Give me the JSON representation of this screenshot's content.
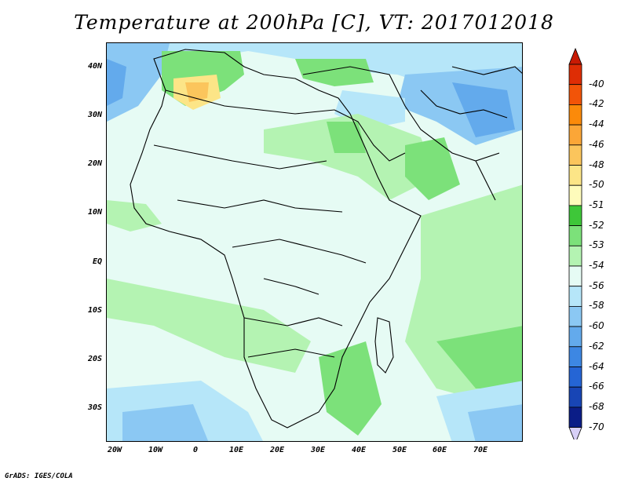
{
  "title": "Temperature at 200hPa [C], VT: 2017012018",
  "credit": "GrADS: IGES/COLA",
  "map": {
    "lat_labels": [
      "40N",
      "30N",
      "20N",
      "10N",
      "EQ",
      "10S",
      "20S",
      "30S"
    ],
    "lon_labels": [
      "20W",
      "10W",
      "0",
      "10E",
      "20E",
      "30E",
      "40E",
      "50E",
      "60E",
      "70E"
    ]
  },
  "colorbar": {
    "levels": [
      {
        "label": "-40",
        "color": "#de2d05"
      },
      {
        "label": "-42",
        "color": "#f25408"
      },
      {
        "label": "-44",
        "color": "#fb8a0a"
      },
      {
        "label": "-46",
        "color": "#fba637"
      },
      {
        "label": "-48",
        "color": "#fbc55c"
      },
      {
        "label": "-50",
        "color": "#fce587"
      },
      {
        "label": "-51",
        "color": "#fefbbb"
      },
      {
        "label": "-52",
        "color": "#3ec739"
      },
      {
        "label": "-53",
        "color": "#7ce17a"
      },
      {
        "label": "-54",
        "color": "#b4f3b2"
      },
      {
        "label": "-56",
        "color": "#e6fbf4"
      },
      {
        "label": "-58",
        "color": "#b6e6f9"
      },
      {
        "label": "-60",
        "color": "#8bc8f3"
      },
      {
        "label": "-62",
        "color": "#63aaec"
      },
      {
        "label": "-64",
        "color": "#3d87e3"
      },
      {
        "label": "-66",
        "color": "#2565d5"
      },
      {
        "label": "-68",
        "color": "#1845b5"
      },
      {
        "label": "-70",
        "color": "#0b1d87"
      }
    ],
    "under_color": "#d8d0f7",
    "over_color": "#c81a04"
  }
}
